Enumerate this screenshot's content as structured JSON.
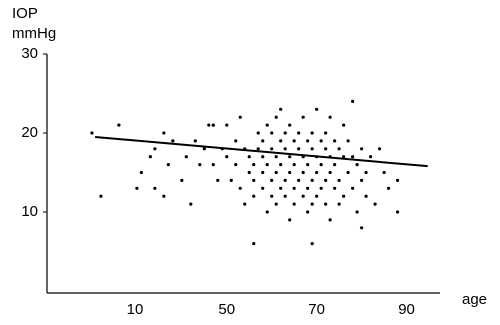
{
  "chart_data": {
    "type": "scatter",
    "ylabel": "IOP",
    "ylabel_unit": "mmHg",
    "xlabel": "age",
    "xlim": [
      10,
      97
    ],
    "ylim": [
      0,
      30
    ],
    "xticks": [
      10,
      50,
      70,
      90
    ],
    "yticks": [
      10,
      20,
      30
    ],
    "series": [
      {
        "color": "#000000",
        "x": [
          20,
          22,
          26,
          31,
          33,
          34,
          34,
          36,
          36,
          37,
          38,
          40,
          41,
          42,
          43,
          44,
          45,
          46,
          47,
          48,
          49,
          50,
          50,
          51,
          52,
          52,
          53,
          53,
          54,
          54,
          55,
          55,
          56,
          56,
          56,
          57,
          57,
          58,
          58,
          58,
          58,
          59,
          59,
          59,
          60,
          60,
          60,
          60,
          61,
          61,
          61,
          61,
          62,
          62,
          62,
          62,
          63,
          63,
          63,
          63,
          64,
          64,
          64,
          64,
          65,
          65,
          65,
          65,
          66,
          66,
          66,
          56,
          67,
          67,
          67,
          67,
          68,
          68,
          68,
          68,
          69,
          69,
          69,
          69,
          70,
          70,
          70,
          70,
          71,
          71,
          69,
          71,
          72,
          72,
          72,
          72,
          73,
          73,
          73,
          73,
          74,
          74,
          74,
          75,
          75,
          75,
          76,
          76,
          76,
          77,
          77,
          78,
          78,
          78,
          79,
          79,
          80,
          80,
          80,
          81,
          81,
          82,
          83,
          84,
          85,
          86,
          88,
          88,
          30,
          47
        ],
        "y": [
          20,
          12,
          21,
          15,
          17,
          13,
          18,
          12,
          20,
          16,
          19,
          14,
          17,
          11,
          19,
          16,
          18,
          21,
          16,
          14,
          18,
          17,
          21,
          14,
          16,
          19,
          22,
          13,
          18,
          11,
          15,
          17,
          14,
          16,
          12,
          18,
          20,
          15,
          17,
          19,
          13,
          16,
          10,
          21,
          18,
          14,
          12,
          20,
          22,
          17,
          15,
          11,
          19,
          16,
          13,
          23,
          18,
          14,
          20,
          12,
          17,
          15,
          9,
          21,
          19,
          16,
          13,
          11,
          18,
          14,
          20,
          6,
          17,
          15,
          12,
          22,
          19,
          16,
          13,
          10,
          18,
          14,
          20,
          11,
          17,
          15,
          12,
          23,
          19,
          16,
          6,
          13,
          18,
          14,
          20,
          11,
          17,
          15,
          22,
          9,
          19,
          16,
          13,
          18,
          14,
          11,
          17,
          12,
          21,
          15,
          19,
          13,
          24,
          17,
          16,
          10,
          18,
          14,
          8,
          15,
          12,
          17,
          11,
          18,
          15,
          13,
          14,
          10,
          13,
          21
        ]
      }
    ],
    "trend": {
      "color": "#000000",
      "x": [
        20.7,
        94.7
      ],
      "y": [
        19.5,
        15.8
      ]
    }
  }
}
